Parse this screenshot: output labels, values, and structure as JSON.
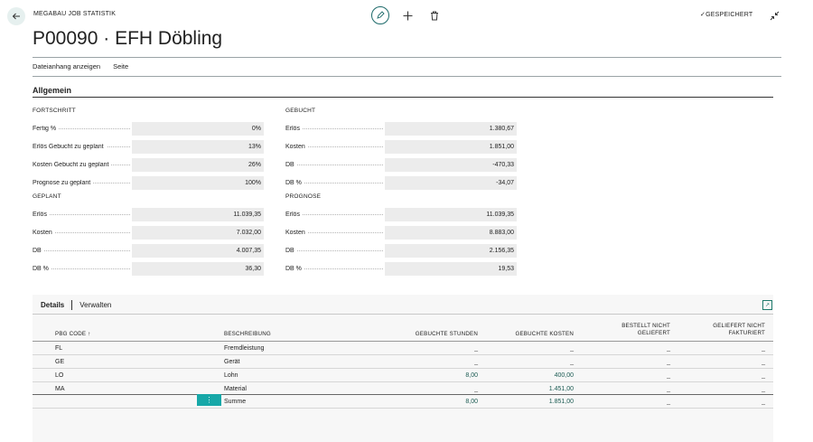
{
  "header": {
    "caption": "MEGABAU JOB STATISTIK",
    "saved_label": "✓GESPEICHERT",
    "title": "P00090 · EFH Döbling"
  },
  "actions": [
    "Dateianhang anzeigen",
    "Seite"
  ],
  "section": {
    "title": "Allgemein"
  },
  "fortschritt": {
    "title": "FORTSCHRITT",
    "rows": [
      {
        "label": "Fertig %",
        "value": "0%"
      },
      {
        "label": "Erlös Gebucht zu geplant",
        "value": "13%"
      },
      {
        "label": "Kosten Gebucht zu geplant",
        "value": "26%"
      },
      {
        "label": "Prognose zu geplant",
        "value": "100%"
      }
    ]
  },
  "geplant": {
    "title": "GEPLANT",
    "rows": [
      {
        "label": "Erlös",
        "value": "11.039,35"
      },
      {
        "label": "Kosten",
        "value": "7.032,00"
      },
      {
        "label": "DB",
        "value": "4.007,35"
      },
      {
        "label": "DB %",
        "value": "36,30"
      }
    ]
  },
  "gebucht": {
    "title": "GEBUCHT",
    "rows": [
      {
        "label": "Erlös",
        "value": "1.380,67"
      },
      {
        "label": "Kosten",
        "value": "1.851,00"
      },
      {
        "label": "DB",
        "value": "-470,33"
      },
      {
        "label": "DB %",
        "value": "-34,07"
      }
    ]
  },
  "prognose": {
    "title": "PROGNOSE",
    "rows": [
      {
        "label": "Erlös",
        "value": "11.039,35"
      },
      {
        "label": "Kosten",
        "value": "8.883,00"
      },
      {
        "label": "DB",
        "value": "2.156,35"
      },
      {
        "label": "DB %",
        "value": "19,53"
      }
    ]
  },
  "details": {
    "tab_active": "Details",
    "tab_other": "Verwalten",
    "columns": {
      "code": "PBG CODE ↑",
      "desc": "BESCHREIBUNG",
      "hours": "GEBUCHTE STUNDEN",
      "costs": "GEBUCHTE KOSTEN",
      "ordered_1": "BESTELLT NICHT",
      "ordered_2": "GELIEFERT",
      "delivered_1": "GELIEFERT NICHT",
      "delivered_2": "FAKTURIERT"
    },
    "rows": [
      {
        "code": "FL",
        "desc": "Fremdleistung",
        "hours": "_",
        "costs": "_",
        "ordered": "_",
        "delivered": "_"
      },
      {
        "code": "GE",
        "desc": "Gerät",
        "hours": "_",
        "costs": "_",
        "ordered": "_",
        "delivered": "_"
      },
      {
        "code": "LO",
        "desc": "Lohn",
        "hours": "8,00",
        "costs": "400,00",
        "ordered": "_",
        "delivered": "_"
      },
      {
        "code": "MA",
        "desc": "Material",
        "hours": "_",
        "costs": "1.451,00",
        "ordered": "_",
        "delivered": "_"
      },
      {
        "code": "",
        "desc": "Summe",
        "hours": "8,00",
        "costs": "1.851,00",
        "ordered": "_",
        "delivered": "_"
      }
    ]
  }
}
